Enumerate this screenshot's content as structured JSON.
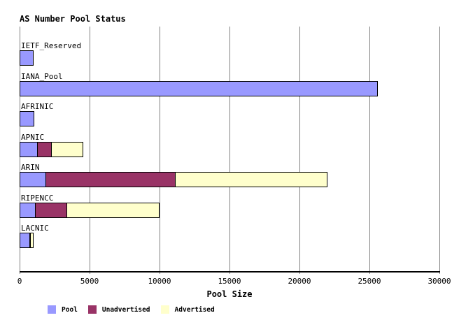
{
  "chart_data": {
    "type": "bar",
    "orientation": "horizontal",
    "stacked": true,
    "title": "AS Number Pool Status",
    "xlabel": "Pool Size",
    "xlim": [
      0,
      30000
    ],
    "xticks": [
      0,
      5000,
      10000,
      15000,
      20000,
      25000,
      30000
    ],
    "grid": "vertical-only",
    "legend_position": "bottom",
    "categories": [
      "IETF_Reserved",
      "IANA_Pool",
      "AFRINIC",
      "APNIC",
      "ARIN",
      "RIPENCC",
      "LACNIC"
    ],
    "series": [
      {
        "name": "Pool",
        "color": "#9999ff",
        "values": [
          1000,
          25600,
          1050,
          1300,
          1900,
          1150,
          750
        ]
      },
      {
        "name": "Unadvertised",
        "color": "#993366",
        "values": [
          0,
          0,
          0,
          1050,
          9300,
          2300,
          50
        ]
      },
      {
        "name": "Advertised",
        "color": "#ffffcc",
        "values": [
          0,
          0,
          0,
          2300,
          10900,
          6650,
          250
        ]
      }
    ],
    "totals": [
      1000,
      25600,
      1050,
      4650,
      22100,
      10100,
      1050
    ],
    "colors": {
      "pool": "#9999ff",
      "unadvertised": "#993366",
      "advertised": "#ffffcc",
      "gridline": "#808080",
      "axis": "#000000",
      "background": "#ffffff"
    }
  }
}
